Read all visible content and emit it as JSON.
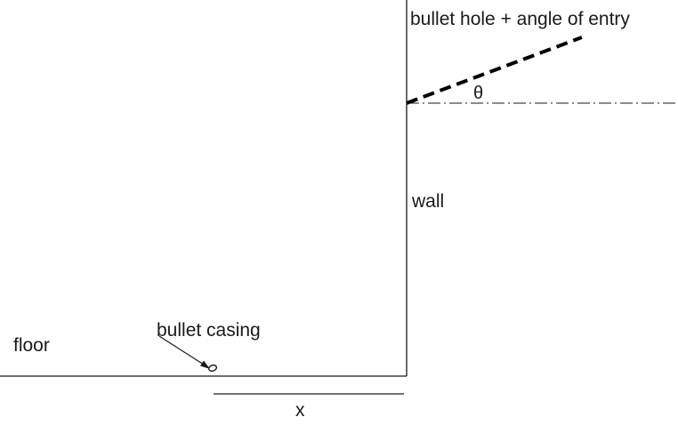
{
  "diagram": {
    "labels": {
      "bullet_hole": "bullet hole + angle of entry",
      "theta": "θ",
      "wall": "wall",
      "floor": "floor",
      "bullet_casing": "bullet casing",
      "x": "x"
    },
    "colors": {
      "background": "#ffffff",
      "ink": "#1a1a1a"
    }
  }
}
